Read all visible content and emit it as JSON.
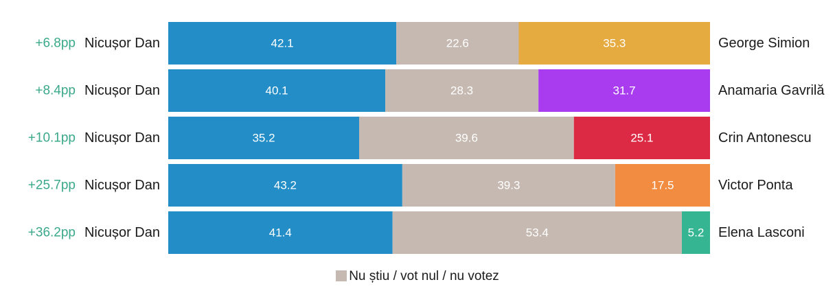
{
  "chart_data": {
    "type": "bar",
    "orientation": "horizontal",
    "stacked": true,
    "rows": [
      {
        "margin": "+6.8pp",
        "left": "Nicușor Dan",
        "right": "George Simion",
        "values": [
          42.1,
          22.6,
          35.3
        ],
        "labels": [
          "42.1",
          "22.6",
          "35.3"
        ],
        "right_color": "#e6ab40"
      },
      {
        "margin": "+8.4pp",
        "left": "Nicușor Dan",
        "right": "Anamaria Gavrilă",
        "values": [
          40.1,
          28.3,
          31.7
        ],
        "labels": [
          "40.1",
          "28.3",
          "31.7"
        ],
        "right_color": "#aa3cf0"
      },
      {
        "margin": "+10.1pp",
        "left": "Nicușor Dan",
        "right": "Crin Antonescu",
        "values": [
          35.2,
          39.6,
          25.1
        ],
        "labels": [
          "35.2",
          "39.6",
          "25.1"
        ],
        "right_color": "#dc2a45"
      },
      {
        "margin": "+25.7pp",
        "left": "Nicușor Dan",
        "right": "Victor Ponta",
        "values": [
          43.2,
          39.3,
          17.5
        ],
        "labels": [
          "43.2",
          "39.3",
          "17.5"
        ],
        "right_color": "#f28c40"
      },
      {
        "margin": "+36.2pp",
        "left": "Nicușor Dan",
        "right": "Elena Lasconi",
        "values": [
          41.4,
          53.4,
          5.2
        ],
        "labels": [
          "41.4",
          "53.4",
          "5.2"
        ],
        "right_color": "#36b593"
      }
    ],
    "left_color": "#228dc7",
    "middle_color": "#c6b9b1",
    "margin_color": "#3aa88a",
    "legend": [
      {
        "label": "Nu știu / vot nul / nu votez",
        "color": "#c6b9b1"
      }
    ]
  }
}
